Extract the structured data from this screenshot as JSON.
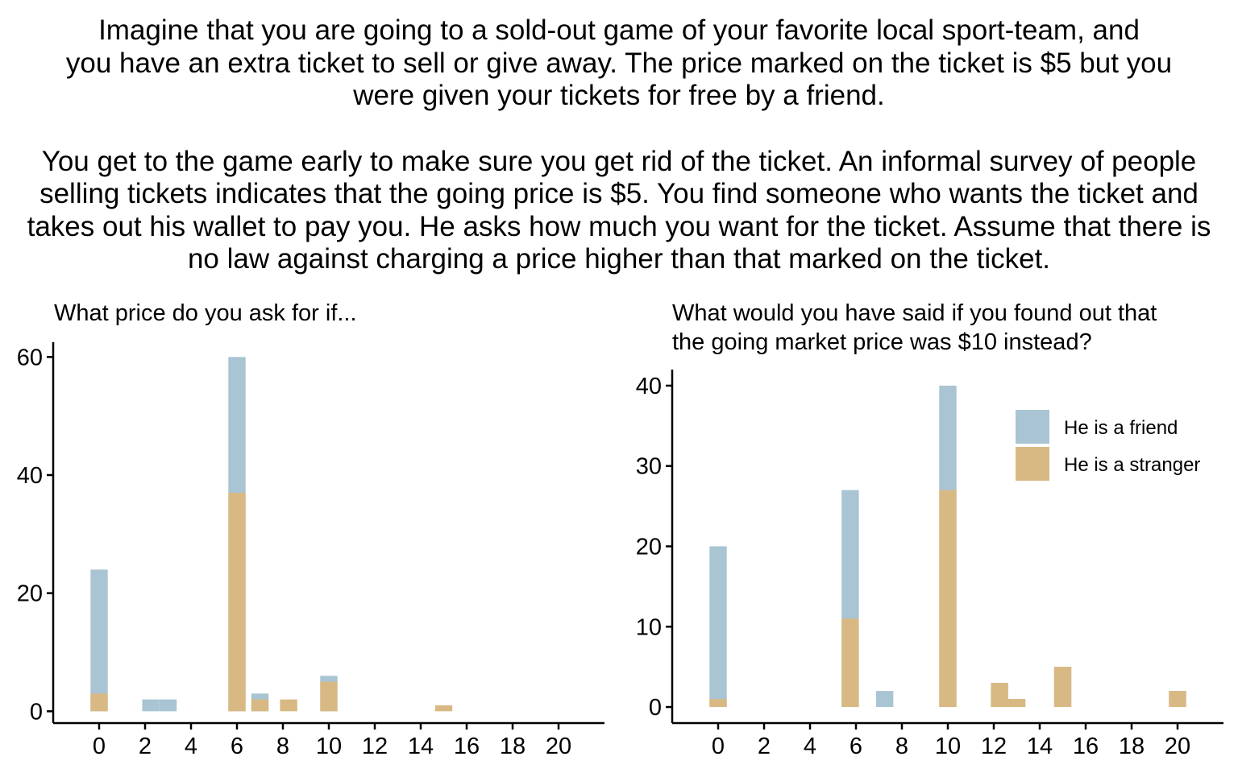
{
  "intro": {
    "paragraph1": [
      "Imagine that you are going to a sold-out game of your favorite local sport-team, and",
      "you have an extra ticket to sell or give away. The price marked on the ticket is $5 but you",
      "were given your tickets for free by a friend."
    ],
    "paragraph2": [
      "You get to the game early to make sure you get rid of the ticket. An informal survey of people",
      "selling tickets indicates that the going price is $5. You find someone who wants the ticket and",
      "takes out his wallet to pay you. He asks how much you want for the ticket. Assume that there is",
      "no law against charging a price higher than that marked on the ticket."
    ]
  },
  "colors": {
    "friend": "#a9c4d3",
    "stranger": "#d9b983",
    "axis": "#000000"
  },
  "chart_data": [
    {
      "type": "bar",
      "title": "What price do you ask for if...",
      "xlabel": "",
      "ylabel": "",
      "x_ticks": [
        0,
        2,
        4,
        6,
        8,
        10,
        12,
        14,
        16,
        18,
        20
      ],
      "y_ticks": [
        0,
        20,
        40,
        60
      ],
      "xlim": [
        -2,
        22
      ],
      "ylim": [
        -2,
        62.5
      ],
      "bin_width": 0.75,
      "series": [
        {
          "name": "He is a friend",
          "points": [
            [
              0,
              24
            ],
            [
              2.25,
              2
            ],
            [
              3,
              2
            ],
            [
              6,
              60
            ],
            [
              7,
              3
            ],
            [
              8.25,
              0
            ],
            [
              10,
              6
            ]
          ]
        },
        {
          "name": "He is a stranger",
          "points": [
            [
              0,
              3
            ],
            [
              6,
              37
            ],
            [
              7,
              2
            ],
            [
              8.25,
              2
            ],
            [
              10,
              5
            ],
            [
              15,
              1
            ]
          ]
        }
      ]
    },
    {
      "type": "bar",
      "title": [
        "What would you have said if you found out that",
        "the going market price was $10 instead?"
      ],
      "xlabel": "",
      "ylabel": "",
      "x_ticks": [
        0,
        2,
        4,
        6,
        8,
        10,
        12,
        14,
        16,
        18,
        20
      ],
      "y_ticks": [
        0,
        10,
        20,
        30,
        40
      ],
      "xlim": [
        -2,
        22
      ],
      "ylim": [
        -2,
        42
      ],
      "bin_width": 0.75,
      "legend": "top-right",
      "series": [
        {
          "name": "He is a friend",
          "points": [
            [
              0,
              20
            ],
            [
              5.75,
              27
            ],
            [
              7.25,
              2
            ],
            [
              10,
              40
            ],
            [
              12.25,
              3
            ],
            [
              13,
              1
            ],
            [
              15,
              5
            ],
            [
              20,
              2
            ]
          ]
        },
        {
          "name": "He is a stranger",
          "points": [
            [
              0,
              1
            ],
            [
              5.75,
              11
            ],
            [
              10,
              27
            ],
            [
              12.25,
              3
            ],
            [
              13,
              1
            ],
            [
              15,
              5
            ],
            [
              20,
              2
            ]
          ]
        }
      ]
    }
  ]
}
